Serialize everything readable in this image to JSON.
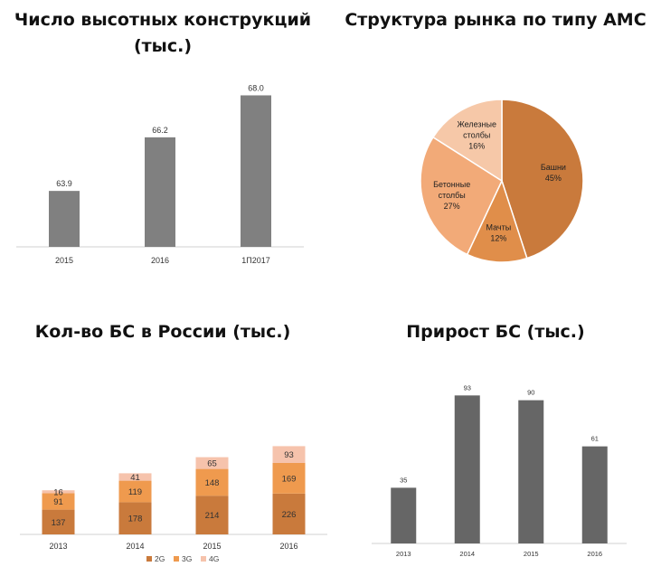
{
  "chart_data": [
    {
      "id": "structures",
      "type": "bar",
      "title": "Число высотных конструкций (тыс.)",
      "categories": [
        "2015",
        "2016",
        "1П2017"
      ],
      "values": [
        63.9,
        66.2,
        68.0
      ],
      "value_labels": [
        "63.9",
        "66.2",
        "68.0"
      ],
      "ylim": [
        61.5,
        68.6
      ],
      "color": "#808080",
      "grid": false
    },
    {
      "id": "ams",
      "type": "pie",
      "title": "Структура рынка по типу АМС",
      "slices": [
        {
          "label": "Башни",
          "value": 45,
          "pct": "45%",
          "color": "#c97a3c"
        },
        {
          "label": "Мачты",
          "value": 12,
          "pct": "12%",
          "color": "#e08e4a"
        },
        {
          "label": "Бетонные столбы",
          "label_lines": [
            "Бетонные",
            "столбы"
          ],
          "value": 27,
          "pct": "27%",
          "color": "#f2aa78"
        },
        {
          "label": "Железные столбы",
          "label_lines": [
            "Железные",
            "столбы"
          ],
          "value": 16,
          "pct": "16%",
          "color": "#f6c8a8"
        }
      ]
    },
    {
      "id": "bs",
      "type": "bar",
      "stacked": true,
      "title": "Кол-во БС в России (тыс.)",
      "categories": [
        "2013",
        "2014",
        "2015",
        "2016"
      ],
      "series": [
        {
          "name": "2G",
          "values": [
            137,
            178,
            214,
            226
          ],
          "color": "#c97a3c"
        },
        {
          "name": "3G",
          "values": [
            91,
            119,
            148,
            169
          ],
          "color": "#ef9a4e"
        },
        {
          "name": "4G",
          "values": [
            16,
            41,
            65,
            93
          ],
          "color": "#f6c3ac"
        }
      ],
      "ylim": [
        0,
        500
      ],
      "legend": "bottom",
      "grid": false
    },
    {
      "id": "growth",
      "type": "bar",
      "title": "Прирост БС (тыс.)",
      "categories": [
        "2013",
        "2014",
        "2015",
        "2016"
      ],
      "values": [
        35,
        93,
        90,
        61
      ],
      "value_labels": [
        "35",
        "93",
        "90",
        "61"
      ],
      "ylim": [
        0,
        100
      ],
      "color": "#666666",
      "grid": false
    }
  ]
}
